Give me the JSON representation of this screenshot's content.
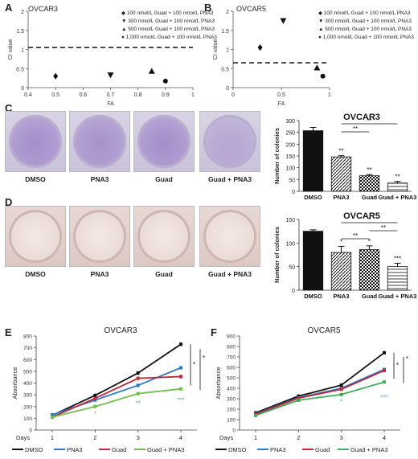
{
  "panelA": {
    "letter": "A",
    "title": "OVCAR3",
    "ylabel": "CI value",
    "xlabel": "FA",
    "legend": [
      "100 nmol/L Guad + 100 nmol/L PNA3",
      "300 nmol/L Guad + 100 nmol/L PNA3",
      "500 nmol/L Guad + 100 nmol/L PNA3",
      "1,000 nmol/L Guad + 100 nmol/L PNA3"
    ],
    "chart_data": {
      "type": "scatter",
      "xlim": [
        0.4,
        1.0
      ],
      "ylim": [
        0,
        2
      ],
      "xticks": [
        "0.4",
        "0.5",
        "0.6",
        "0.7",
        "0.8",
        "0.9",
        "1"
      ],
      "yticks": [
        "0",
        "0.5",
        "1",
        "1.5",
        "2"
      ],
      "reference_line": 1.05,
      "points": [
        {
          "x": 0.5,
          "y": 0.3,
          "marker": "diamond"
        },
        {
          "x": 0.7,
          "y": 0.33,
          "marker": "triangle-down"
        },
        {
          "x": 0.85,
          "y": 0.43,
          "marker": "triangle-up"
        },
        {
          "x": 0.9,
          "y": 0.17,
          "marker": "circle"
        }
      ]
    }
  },
  "panelB": {
    "letter": "B",
    "title": "OVCAR5",
    "ylabel": "CI value",
    "xlabel": "FA",
    "legend": [
      "100 nmol/L Guad + 100 nmol/L PNA3",
      "300 nmol/L Guad + 100 nmol/L PNA3",
      "500 nmol/L Guad + 100 nmol/L PNA3",
      "1,000 nmol/L Guad + 100 nmol/L PNA3"
    ],
    "chart_data": {
      "type": "scatter",
      "xlim": [
        0,
        1
      ],
      "ylim": [
        0,
        2
      ],
      "xticks": [
        "0",
        "0.5",
        "1"
      ],
      "yticks": [
        "0",
        "0.5",
        "1",
        "1.5",
        "2"
      ],
      "reference_line": 0.65,
      "points": [
        {
          "x": 0.28,
          "y": 1.05,
          "marker": "diamond"
        },
        {
          "x": 0.52,
          "y": 1.75,
          "marker": "triangle-down"
        },
        {
          "x": 0.87,
          "y": 0.52,
          "marker": "triangle-up"
        },
        {
          "x": 0.93,
          "y": 0.3,
          "marker": "circle"
        }
      ]
    }
  },
  "panelC": {
    "letter": "C",
    "dish_labels": [
      "DMSO",
      "PNA3",
      "Guad",
      "Guad + PNA3"
    ],
    "chart_data": {
      "type": "bar",
      "title": "OVCAR3",
      "ylabel": "Number of colonies",
      "categories": [
        "DMSO",
        "PNA3",
        "Guad",
        "Guad + PNA3"
      ],
      "values": [
        257,
        146,
        66,
        35
      ],
      "errors": [
        14,
        5,
        5,
        7
      ],
      "ylim": [
        0,
        300
      ],
      "yticks": [
        "0",
        "50",
        "100",
        "150",
        "200",
        "250",
        "300"
      ],
      "bar_labels": [
        "",
        "**",
        "**",
        "**"
      ],
      "brackets": [
        {
          "from": 1,
          "to": 3,
          "label": "**"
        },
        {
          "from": 1,
          "to": 2,
          "label": "**"
        }
      ]
    }
  },
  "panelD": {
    "letter": "D",
    "dish_labels": [
      "DMSO",
      "PNA3",
      "Guad",
      "Guad + PNA3"
    ],
    "chart_data": {
      "type": "bar",
      "title": "OVCAR5",
      "ylabel": "Number of colonies",
      "categories": [
        "DMSO",
        "PNA3",
        "Guad",
        "Guad + PNA3"
      ],
      "values": [
        125,
        80,
        86,
        50
      ],
      "errors": [
        3,
        13,
        8,
        7
      ],
      "ylim": [
        0,
        150
      ],
      "yticks": [
        "0",
        "50",
        "100",
        "150"
      ],
      "bar_labels": [
        "",
        "*",
        "*",
        "***"
      ],
      "brackets": [
        {
          "from": 1,
          "to": 3,
          "label": "*"
        },
        {
          "from": 2,
          "to": 3,
          "label": "**"
        },
        {
          "from": 1,
          "to": 2,
          "label": "**"
        }
      ]
    }
  },
  "panelE": {
    "letter": "E",
    "chart_data": {
      "type": "line",
      "title": "OVCAR3",
      "ylabel": "Absorbance",
      "xlabel": "Days",
      "x": [
        1,
        2,
        3,
        4
      ],
      "ylim": [
        0,
        800
      ],
      "yticks": [
        "0",
        "100",
        "200",
        "300",
        "400",
        "500",
        "600",
        "700",
        "800"
      ],
      "series": [
        {
          "name": "DMSO",
          "color": "#111111",
          "values": [
            125,
            295,
            485,
            730
          ]
        },
        {
          "name": "PNA3",
          "color": "#2e78c4",
          "values": [
            130,
            255,
            380,
            530
          ]
        },
        {
          "name": "Guad",
          "color": "#c0283b",
          "values": [
            110,
            270,
            440,
            455
          ]
        },
        {
          "name": "Guad + PNA3",
          "color": "#6fbf4f",
          "values": [
            110,
            200,
            310,
            350
          ]
        }
      ],
      "annotations": [
        {
          "x": 2,
          "y": 120,
          "text": "*",
          "color": "#6fbf4f"
        },
        {
          "x": 3,
          "y": 210,
          "text": "**",
          "color": "#5aa7c8"
        },
        {
          "x": 4,
          "y": 235,
          "text": "***",
          "color": "#5aa7c8"
        }
      ],
      "significance_brackets": [
        "*",
        "*"
      ]
    }
  },
  "panelF": {
    "letter": "F",
    "chart_data": {
      "type": "line",
      "title": "OVCAR5",
      "ylabel": "Absorbance",
      "xlabel": "Days",
      "x": [
        1,
        2,
        3,
        4
      ],
      "ylim": [
        0,
        900
      ],
      "yticks": [
        "0",
        "100",
        "200",
        "300",
        "400",
        "500",
        "600",
        "700",
        "800",
        "900"
      ],
      "series": [
        {
          "name": "DMSO",
          "color": "#111111",
          "values": [
            165,
            325,
            430,
            740
          ]
        },
        {
          "name": "PNA3",
          "color": "#2e78c4",
          "values": [
            155,
            310,
            400,
            580
          ]
        },
        {
          "name": "Guad",
          "color": "#c0283b",
          "values": [
            150,
            305,
            390,
            570
          ]
        },
        {
          "name": "Guad + PNA3",
          "color": "#3fae5a",
          "values": [
            140,
            285,
            340,
            460
          ]
        }
      ],
      "annotations": [
        {
          "x": 3,
          "y": 250,
          "text": "*",
          "color": "#3fae5a"
        },
        {
          "x": 4,
          "y": 290,
          "text": "***",
          "color": "#5aa7c8"
        }
      ],
      "significance_brackets": [
        "*",
        "*"
      ]
    }
  }
}
